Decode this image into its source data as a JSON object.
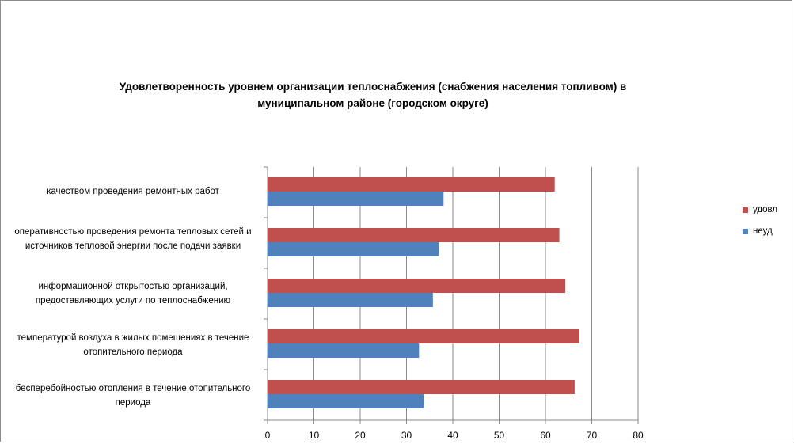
{
  "chart_data": {
    "type": "bar",
    "orientation": "horizontal",
    "title": "Удовлетворенность уровнем организации теплоснабжения (снабжения населения топливом) в муниципальном районе (городском округе)",
    "categories": [
      "качеством проведения ремонтных работ",
      "оперативностью проведения ремонта тепловых сетей и источников тепловой энергии после подачи заявки",
      "информационной открытостью организаций, предоставляющих услуги по теплоснабжению",
      "температурой воздуха в жилых помещениях в течение отопительного периода",
      "бесперебойностью отопления в течение отопительного периода"
    ],
    "series": [
      {
        "name": "удовл",
        "color": "#c0504d",
        "values": [
          62,
          63,
          64.3,
          67.3,
          66.3
        ]
      },
      {
        "name": "неуд",
        "color": "#4f81bd",
        "values": [
          38,
          37,
          35.7,
          32.7,
          33.7
        ]
      }
    ],
    "xlim": [
      0,
      80
    ],
    "xticks": [
      "0",
      "10",
      "20",
      "30",
      "40",
      "50",
      "60",
      "70",
      "80"
    ],
    "grid": true,
    "legend": "right"
  }
}
